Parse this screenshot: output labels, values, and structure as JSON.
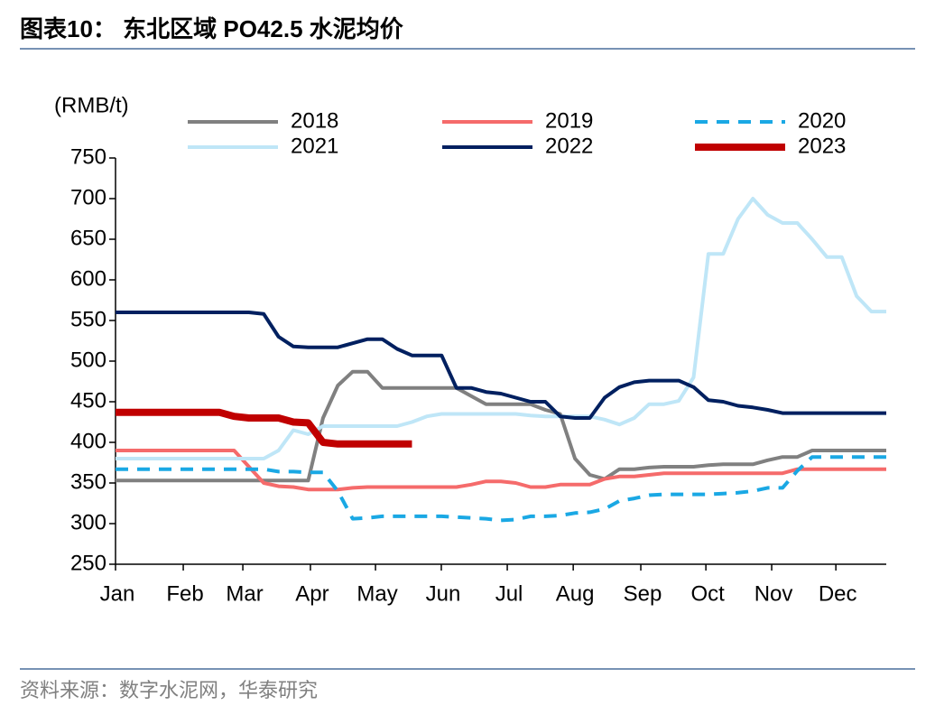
{
  "chart_data": {
    "type": "line",
    "title": "图表10：  东北区域 PO42.5 水泥均价",
    "y_label": "(RMB/t)",
    "source": "资料来源：数字水泥网，华泰研究",
    "x": [
      0,
      1,
      2,
      3,
      4,
      5,
      6,
      7,
      8,
      9,
      10,
      11,
      12,
      13,
      14,
      15,
      16,
      17,
      18,
      19,
      20,
      21,
      22,
      23,
      24,
      25,
      26,
      27,
      28,
      29,
      30,
      31,
      32,
      33,
      34,
      35,
      36,
      37,
      38,
      39,
      40,
      41,
      42,
      43,
      44,
      45,
      46,
      47,
      48,
      49,
      50,
      51,
      52
    ],
    "xlim": [
      0,
      52
    ],
    "xticks": [
      {
        "value": 0,
        "label": "Jan"
      },
      {
        "value": 4.57,
        "label": "Feb"
      },
      {
        "value": 8.59,
        "label": "Mar"
      },
      {
        "value": 13.15,
        "label": "Apr"
      },
      {
        "value": 17.54,
        "label": "May"
      },
      {
        "value": 21.98,
        "label": "Jun"
      },
      {
        "value": 26.43,
        "label": "Jul"
      },
      {
        "value": 30.88,
        "label": "Aug"
      },
      {
        "value": 35.44,
        "label": "Sep"
      },
      {
        "value": 39.83,
        "label": "Oct"
      },
      {
        "value": 44.27,
        "label": "Nov"
      },
      {
        "value": 48.6,
        "label": "Dec"
      }
    ],
    "ylim": [
      250,
      750
    ],
    "yticks": [
      250,
      300,
      350,
      400,
      450,
      500,
      550,
      600,
      650,
      700,
      750
    ],
    "series": [
      {
        "name": "2018",
        "color": "#808080",
        "dash": false,
        "width": 4,
        "values": [
          353,
          353,
          353,
          353,
          353,
          353,
          353,
          353,
          353,
          353,
          353,
          353,
          353,
          353,
          430,
          470,
          487,
          487,
          467,
          467,
          467,
          467,
          467,
          467,
          457,
          447,
          447,
          447,
          447,
          440,
          435,
          380,
          360,
          355,
          367,
          367,
          369,
          370,
          370,
          370,
          372,
          373,
          373,
          373,
          378,
          382,
          382,
          390,
          390,
          390,
          390,
          390,
          390
        ]
      },
      {
        "name": "2019",
        "color": "#f56b6b",
        "dash": false,
        "width": 4,
        "values": [
          390,
          390,
          390,
          390,
          390,
          390,
          390,
          390,
          390,
          370,
          350,
          346,
          345,
          342,
          342,
          342,
          344,
          345,
          345,
          345,
          345,
          345,
          345,
          345,
          348,
          352,
          352,
          350,
          345,
          345,
          348,
          348,
          348,
          355,
          358,
          358,
          360,
          362,
          362,
          362,
          362,
          362,
          362,
          362,
          362,
          362,
          367,
          367,
          367,
          367,
          367,
          367,
          367
        ]
      },
      {
        "name": "2020",
        "color": "#1aa8e4",
        "dash": true,
        "width": 4,
        "values": [
          367,
          367,
          367,
          367,
          367,
          367,
          367,
          367,
          367,
          367,
          367,
          364,
          364,
          363,
          363,
          340,
          306,
          307,
          309,
          309,
          309,
          309,
          309,
          308,
          307,
          306,
          304,
          305,
          309,
          309,
          310,
          313,
          314,
          318,
          328,
          331,
          335,
          336,
          336,
          336,
          336,
          337,
          338,
          340,
          344,
          344,
          365,
          382,
          382,
          382,
          382,
          382,
          382
        ]
      },
      {
        "name": "2021",
        "color": "#bfe6f7",
        "dash": false,
        "width": 4,
        "values": [
          380,
          380,
          380,
          380,
          380,
          380,
          380,
          380,
          380,
          380,
          380,
          390,
          415,
          410,
          420,
          420,
          420,
          420,
          420,
          420,
          425,
          432,
          435,
          435,
          435,
          435,
          435,
          435,
          433,
          432,
          432,
          432,
          432,
          428,
          422,
          430,
          447,
          447,
          451,
          480,
          632,
          632,
          675,
          700,
          680,
          670,
          670,
          650,
          628,
          628,
          580,
          561,
          561
        ]
      },
      {
        "name": "2022",
        "color": "#002060",
        "dash": false,
        "width": 4,
        "values": [
          560,
          560,
          560,
          560,
          560,
          560,
          560,
          560,
          560,
          560,
          558,
          530,
          518,
          517,
          517,
          517,
          522,
          527,
          527,
          515,
          507,
          507,
          507,
          467,
          467,
          462,
          460,
          455,
          450,
          450,
          432,
          430,
          430,
          455,
          468,
          474,
          476,
          476,
          476,
          468,
          452,
          450,
          445,
          443,
          440,
          436,
          436,
          436,
          436,
          436,
          436,
          436,
          436
        ]
      },
      {
        "name": "2023",
        "color": "#c00000",
        "dash": false,
        "width": 8,
        "values": [
          437,
          437,
          437,
          437,
          437,
          437,
          437,
          437,
          432,
          430,
          430,
          430,
          425,
          424,
          400,
          398,
          398,
          398,
          398,
          398,
          398,
          null,
          null,
          null,
          null,
          null,
          null,
          null,
          null,
          null,
          null,
          null,
          null,
          null,
          null,
          null,
          null,
          null,
          null,
          null,
          null,
          null,
          null,
          null,
          null,
          null,
          null,
          null,
          null,
          null,
          null,
          null,
          null
        ]
      }
    ]
  }
}
